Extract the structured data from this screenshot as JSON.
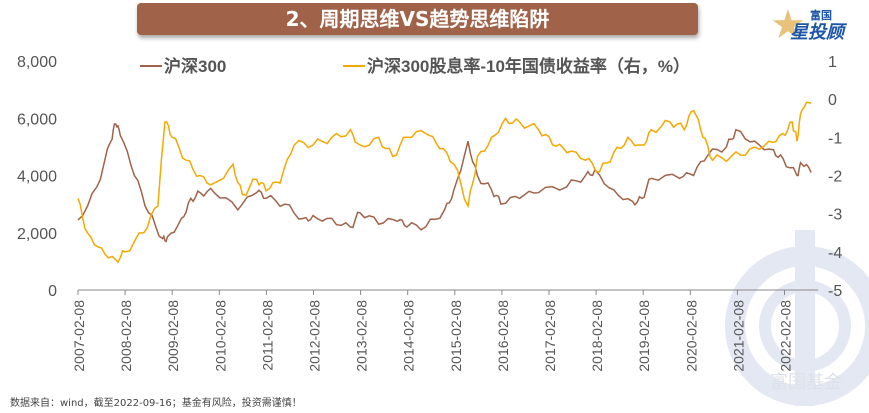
{
  "title": "2、周期思维VS趋势思维陷阱",
  "logo": {
    "top": "富国",
    "main": "星投顾"
  },
  "watermark": "富国基金",
  "source": "数据来自：wind，截至2022-09-16；基金有风险，投资需谨慎！",
  "chart_data": {
    "type": "line",
    "title": "2、周期思维VS趋势思维陷阱",
    "legend_position": "top",
    "y_left": {
      "ticks": [
        "0",
        "2,000",
        "4,000",
        "6,000",
        "8,000"
      ],
      "values": [
        0,
        2000,
        4000,
        6000,
        8000
      ],
      "ylim": [
        0,
        8000
      ]
    },
    "y_right": {
      "ticks": [
        "-5",
        "-4",
        "-3",
        "-2",
        "-1",
        "0",
        "1"
      ],
      "values": [
        -5,
        -4,
        -3,
        -2,
        -1,
        0,
        1
      ],
      "ylim": [
        -5,
        1
      ]
    },
    "x_ticks": [
      "2007-02-08",
      "2008-02-08",
      "2009-02-08",
      "2010-02-08",
      "2011-02-08",
      "2012-02-08",
      "2013-02-08",
      "2014-02-08",
      "2015-02-08",
      "2016-02-08",
      "2017-02-08",
      "2018-02-08",
      "2019-02-08",
      "2020-02-08",
      "2021-02-08",
      "2022-02-08"
    ],
    "xlim": [
      2007.1,
      2022.72
    ],
    "series": [
      {
        "name": "沪深300",
        "axis": "left",
        "color": "#a0634a",
        "x": [
          2007.1,
          2007.5,
          2007.8,
          2007.9,
          2008.0,
          2008.3,
          2008.6,
          2008.9,
          2009.0,
          2009.3,
          2009.5,
          2009.7,
          2010.0,
          2010.5,
          2010.9,
          2011.1,
          2011.5,
          2011.9,
          2012.1,
          2012.5,
          2012.9,
          2013.1,
          2013.5,
          2013.9,
          2014.1,
          2014.5,
          2014.9,
          2015.1,
          2015.4,
          2015.6,
          2015.9,
          2016.1,
          2016.5,
          2016.9,
          2017.5,
          2017.9,
          2018.1,
          2018.5,
          2018.9,
          2019.1,
          2019.3,
          2019.9,
          2020.2,
          2020.5,
          2020.9,
          2021.1,
          2021.5,
          2021.9,
          2022.1,
          2022.4,
          2022.5,
          2022.7
        ],
        "y": [
          2450,
          3600,
          5200,
          5800,
          5400,
          4000,
          2700,
          1800,
          1850,
          2500,
          3200,
          3400,
          3400,
          2800,
          3400,
          3200,
          3000,
          2500,
          2600,
          2500,
          2200,
          2700,
          2300,
          2400,
          2200,
          2200,
          2800,
          3500,
          5200,
          4000,
          3500,
          3000,
          3200,
          3400,
          3600,
          4000,
          4200,
          3500,
          3100,
          3200,
          3900,
          3900,
          4000,
          4700,
          5000,
          5600,
          5200,
          4900,
          4600,
          4000,
          4400,
          4100
        ]
      },
      {
        "name": "沪深300股息率-10年国债收益率（右，%）",
        "axis": "right",
        "color": "#f5a800",
        "x": [
          2007.1,
          2007.3,
          2007.6,
          2007.9,
          2008.1,
          2008.5,
          2008.8,
          2008.95,
          2009.1,
          2009.4,
          2009.7,
          2010.0,
          2010.4,
          2010.6,
          2010.9,
          2011.1,
          2011.4,
          2011.7,
          2012.1,
          2012.5,
          2012.9,
          2013.1,
          2013.5,
          2013.8,
          2014.1,
          2014.5,
          2014.8,
          2015.1,
          2015.4,
          2015.6,
          2015.9,
          2016.2,
          2016.5,
          2016.9,
          2017.2,
          2017.5,
          2017.9,
          2018.2,
          2018.5,
          2018.8,
          2019.1,
          2019.3,
          2019.7,
          2020.0,
          2020.2,
          2020.4,
          2020.6,
          2021.0,
          2021.4,
          2021.8,
          2022.1,
          2022.3,
          2022.4,
          2022.5,
          2022.7
        ],
        "y": [
          -2.6,
          -3.5,
          -3.9,
          -4.2,
          -4.0,
          -3.5,
          -2.8,
          -0.6,
          -1.0,
          -1.6,
          -2.0,
          -2.2,
          -1.7,
          -2.5,
          -2.1,
          -2.4,
          -2.2,
          -1.2,
          -1.2,
          -1.0,
          -0.8,
          -1.2,
          -1.0,
          -1.5,
          -1.0,
          -0.9,
          -1.3,
          -1.7,
          -2.8,
          -1.5,
          -1.0,
          -0.5,
          -0.6,
          -0.8,
          -1.2,
          -1.4,
          -1.6,
          -1.9,
          -1.4,
          -1.0,
          -1.2,
          -0.8,
          -0.6,
          -0.8,
          -0.3,
          -1.0,
          -1.6,
          -1.5,
          -1.3,
          -1.1,
          -0.9,
          -0.6,
          -1.1,
          -0.3,
          -0.1
        ]
      }
    ]
  }
}
